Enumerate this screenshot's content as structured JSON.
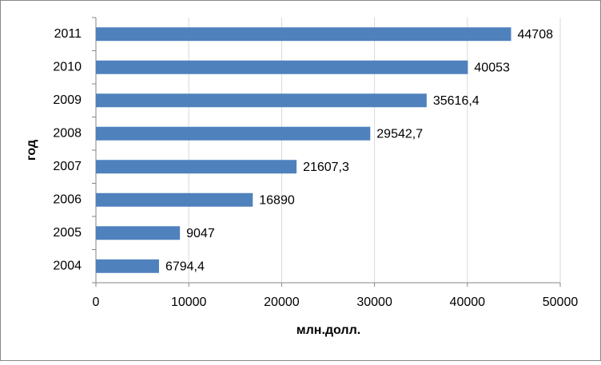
{
  "chart_data": {
    "type": "hbar",
    "categories": [
      "2011",
      "2010",
      "2009",
      "2008",
      "2007",
      "2006",
      "2005",
      "2004"
    ],
    "values": [
      44708,
      40053,
      35616.4,
      29542.7,
      21607.3,
      16890,
      9047,
      6794.4
    ],
    "value_labels": [
      "44708",
      "40053",
      "35616,4",
      "29542,7",
      "21607,3",
      "16890",
      "9047",
      "6794,4"
    ],
    "color": "#4f81bd",
    "xlim": [
      0,
      50000
    ],
    "xticks": [
      0,
      10000,
      20000,
      30000,
      40000,
      50000
    ],
    "grid": true,
    "xlabel": "млн.долл.",
    "ylabel": "год"
  }
}
